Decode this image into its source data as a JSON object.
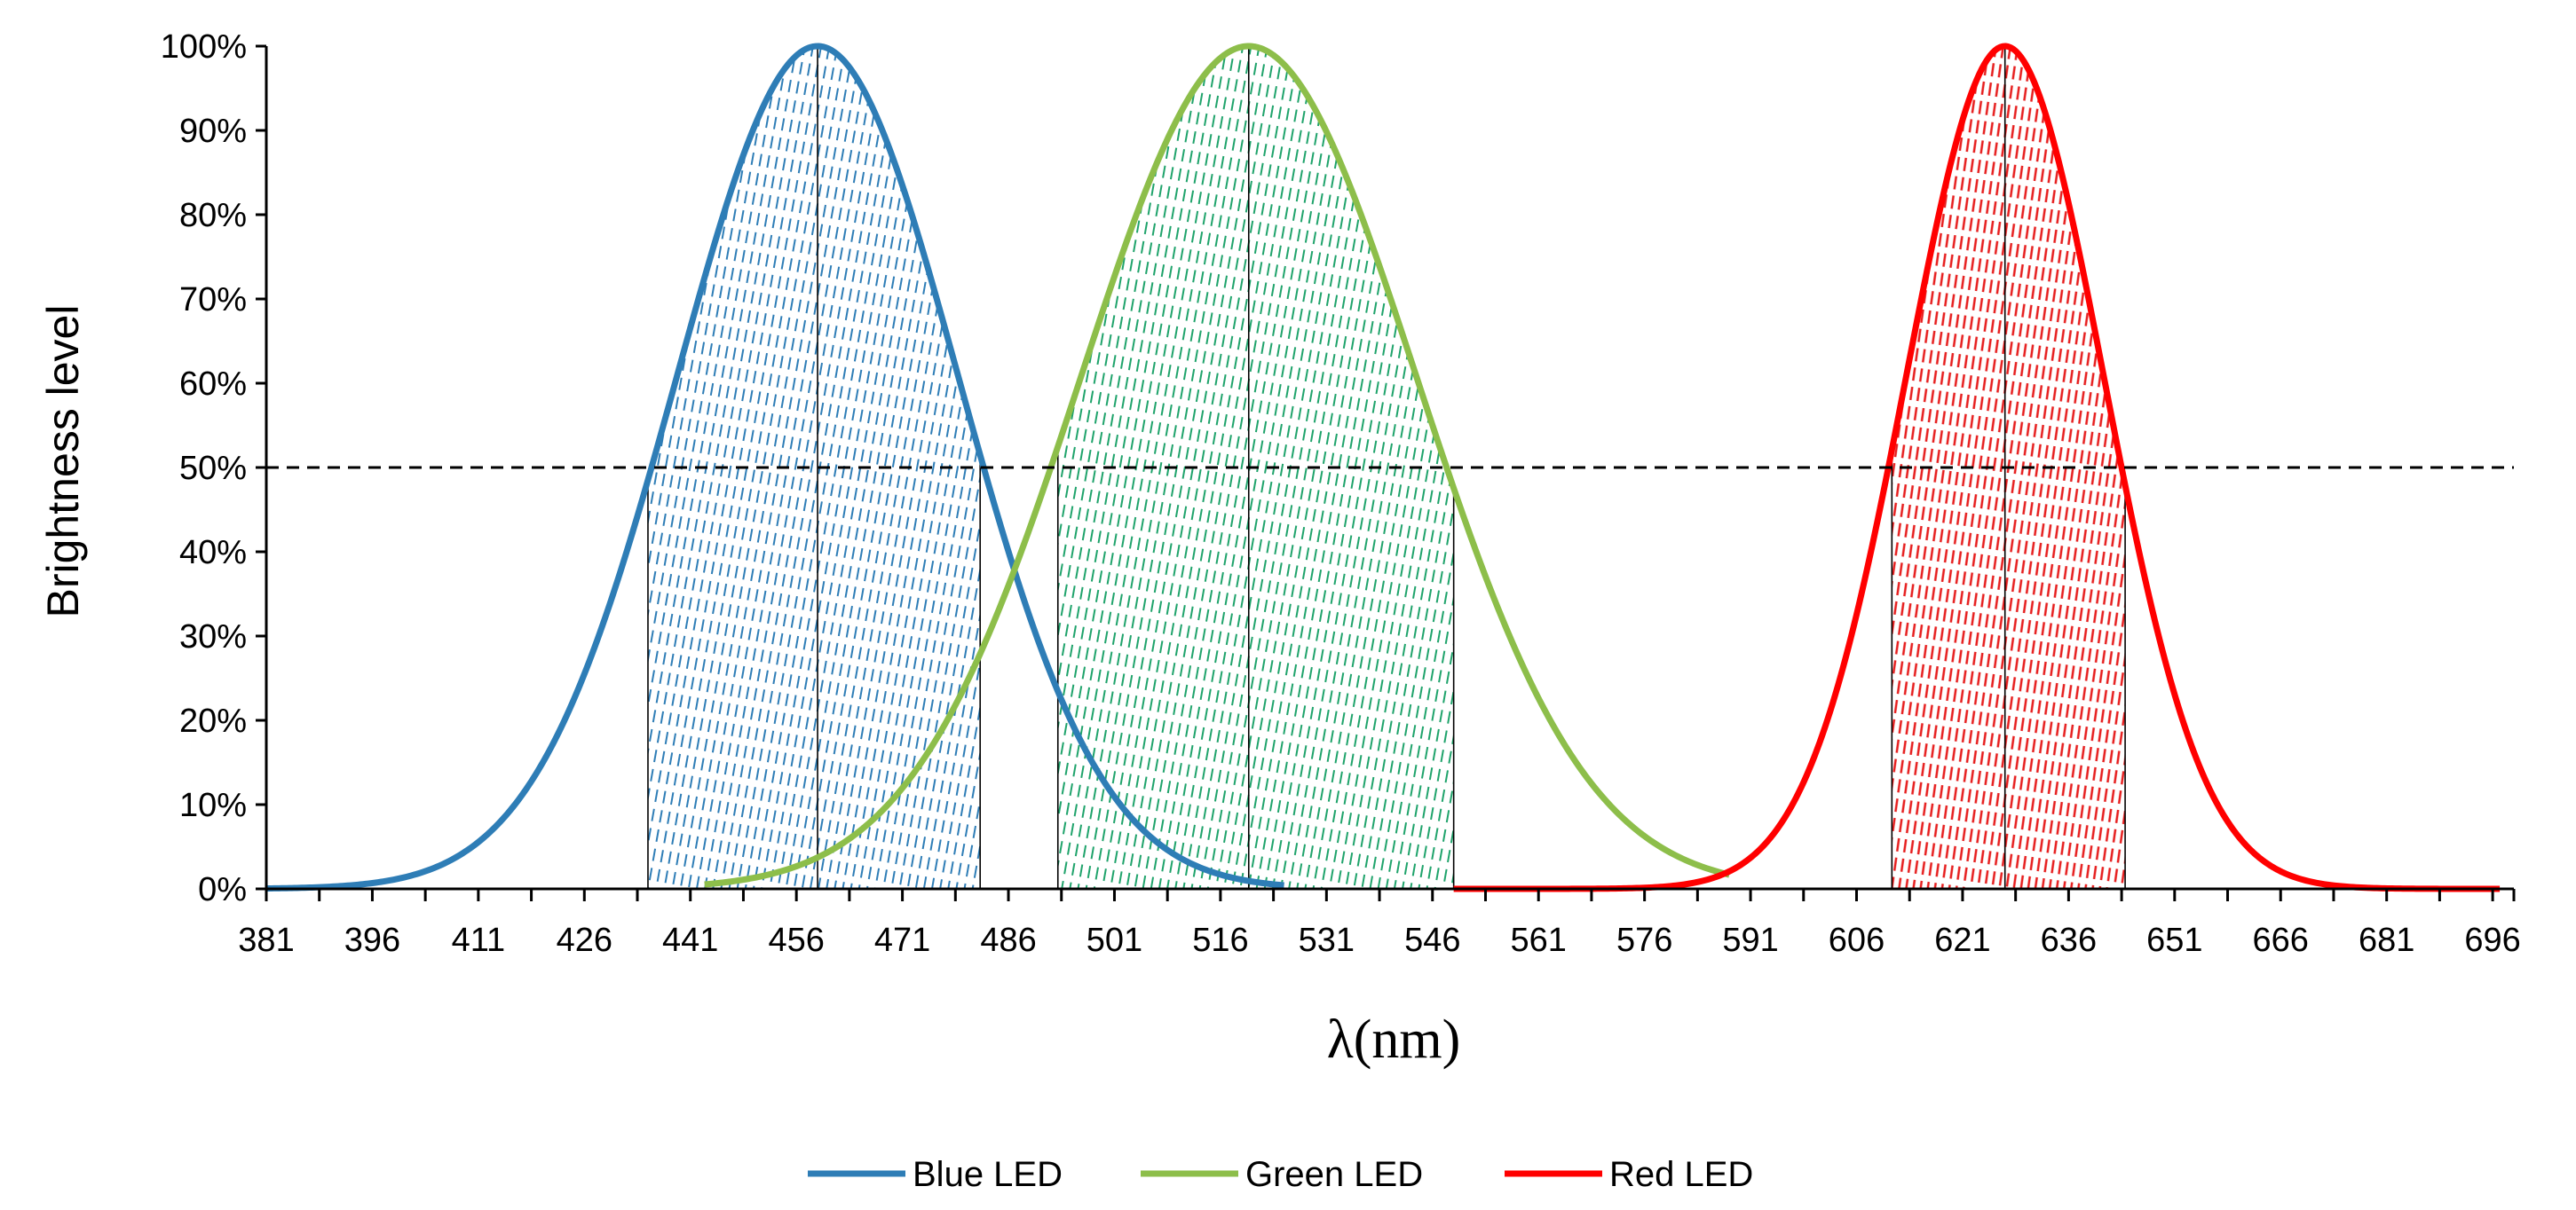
{
  "chart_data": {
    "type": "line",
    "title": "",
    "xlabel": "λ(nm)",
    "ylabel": "Brightness level",
    "xlim": [
      381,
      699
    ],
    "ylim": [
      0,
      1
    ],
    "x_ticks": [
      "381",
      "396",
      "411",
      "426",
      "441",
      "456",
      "471",
      "486",
      "501",
      "516",
      "531",
      "546",
      "561",
      "576",
      "591",
      "606",
      "621",
      "636",
      "651",
      "666",
      "681",
      "696"
    ],
    "y_ticks": [
      "0%",
      "10%",
      "20%",
      "30%",
      "40%",
      "50%",
      "60%",
      "70%",
      "80%",
      "90%",
      "100%"
    ],
    "half_max_line": 0.5,
    "grid": false,
    "legend_position": "bottom",
    "series": [
      {
        "name": "Blue LED",
        "color": "#2E7DB6",
        "range": [
          381,
          525
        ],
        "peak": 459,
        "fwhm_band": [
          435,
          482
        ]
      },
      {
        "name": "Green LED",
        "color": "#8DBE4A",
        "range": [
          443,
          588
        ],
        "peak": 520,
        "fwhm_band": [
          493,
          549
        ]
      },
      {
        "name": "Red LED",
        "color": "#FF0000",
        "range": [
          549,
          697
        ],
        "peak": 627,
        "fwhm_band": [
          611,
          644
        ]
      }
    ]
  },
  "colors": {
    "blue_hatch": "#2E7DB6",
    "green_hatch": "#1FA36B",
    "red_hatch": "#E61E1E"
  }
}
